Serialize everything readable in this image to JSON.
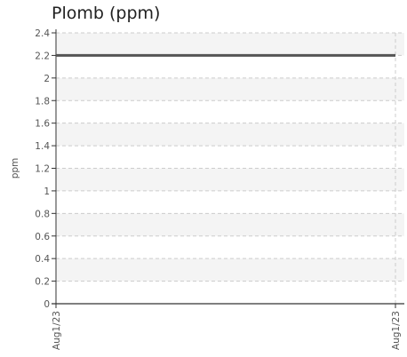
{
  "chart_data": {
    "type": "line",
    "title": "Plomb (ppm)",
    "xlabel": "",
    "ylabel": "ppm",
    "x": [
      "Aug1/23",
      "Aug1/23"
    ],
    "series": [
      {
        "values": [
          2.2,
          2.2
        ]
      }
    ],
    "ylim": [
      0,
      2.4
    ],
    "yticks": [
      0,
      0.2,
      0.4,
      0.6,
      0.8,
      1,
      1.2,
      1.4,
      1.6,
      1.8,
      2,
      2.2,
      2.4
    ],
    "ytick_labels": [
      "0",
      "0.2",
      "0.4",
      "0.6",
      "0.8",
      "1",
      "1.2",
      "1.4",
      "1.6",
      "1.8",
      "2",
      "2.2",
      "2.4"
    ],
    "xtick_labels": [
      "Aug1/23",
      "Aug1/23"
    ],
    "grid": true,
    "band_color": "#f4f4f4",
    "grid_color": "#cccccc",
    "line_color": "#555555",
    "axis_color": "#333333"
  }
}
